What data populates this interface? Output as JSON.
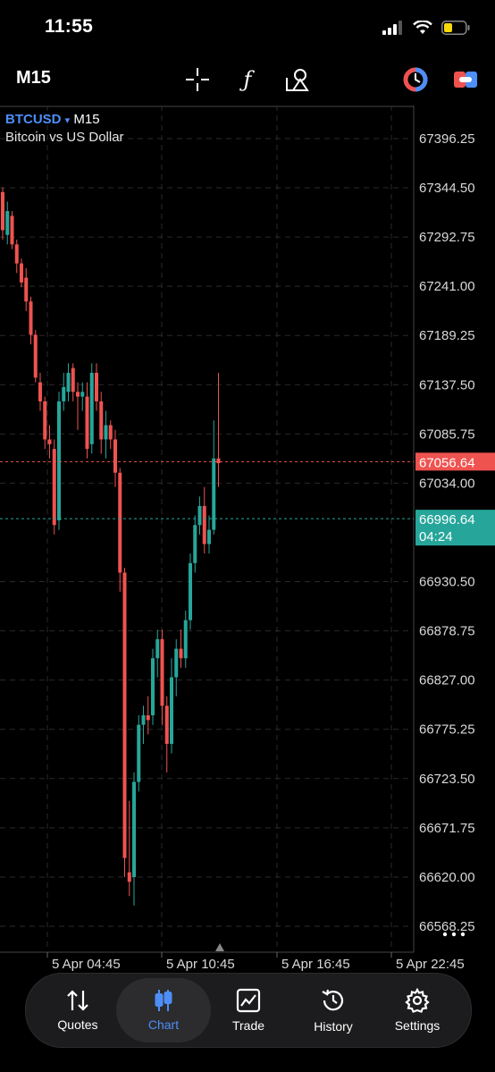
{
  "status": {
    "time": "11:55"
  },
  "toolbar": {
    "timeframe": "M15",
    "icons": [
      "crosshair-icon",
      "indicator-f-icon",
      "objects-icon",
      "one-click-trading-icon",
      "trade-toggle-icon"
    ]
  },
  "symbol": {
    "name": "BTCUSD",
    "dropdown": "▾",
    "timeframe": "M15",
    "description": "Bitcoin vs US Dollar"
  },
  "chart_data": {
    "type": "candlestick",
    "y_ticks": [
      "67396.25",
      "67344.50",
      "67292.75",
      "67241.00",
      "67189.25",
      "67137.50",
      "67085.75",
      "67034.00",
      "66930.50",
      "66878.75",
      "66827.00",
      "66775.25",
      "66723.50",
      "66671.75",
      "66620.00",
      "66568.25"
    ],
    "x_ticks": [
      "5 Apr 04:45",
      "5 Apr 10:45",
      "5 Apr 16:45",
      "5 Apr 22:45"
    ],
    "bid_price": "67056.64",
    "ask_price": "66996.64",
    "ask_timer": "04:24",
    "ylim": [
      66541,
      67431
    ],
    "colors": {
      "up": "#26a69a",
      "down": "#ef5350",
      "bid": "#ef5350",
      "ask": "#26a69a",
      "grid": "#2a2a2a"
    },
    "candles": [
      [
        67340,
        67345,
        67290,
        67300
      ],
      [
        67295,
        67330,
        67285,
        67320
      ],
      [
        67315,
        67320,
        67280,
        67285
      ],
      [
        67285,
        67290,
        67255,
        67265
      ],
      [
        67265,
        67270,
        67240,
        67245
      ],
      [
        67250,
        67260,
        67215,
        67225
      ],
      [
        67225,
        67230,
        67180,
        67190
      ],
      [
        67190,
        67195,
        67140,
        67145
      ],
      [
        67140,
        67150,
        67110,
        67120
      ],
      [
        67120,
        67125,
        67070,
        67080
      ],
      [
        67080,
        67095,
        67060,
        67075
      ],
      [
        67070,
        67080,
        66980,
        66990
      ],
      [
        66995,
        67130,
        66985,
        67120
      ],
      [
        67120,
        67150,
        67110,
        67135
      ],
      [
        67130,
        67160,
        67120,
        67150
      ],
      [
        67155,
        67160,
        67120,
        67130
      ],
      [
        67130,
        67140,
        67090,
        67125
      ],
      [
        67125,
        67140,
        67110,
        67130
      ],
      [
        67125,
        67140,
        67060,
        67070
      ],
      [
        67075,
        67160,
        67065,
        67150
      ],
      [
        67150,
        67160,
        67110,
        67120
      ],
      [
        67120,
        67130,
        67065,
        67080
      ],
      [
        67080,
        67110,
        67060,
        67095
      ],
      [
        67095,
        67100,
        67070,
        67080
      ],
      [
        67080,
        67090,
        67030,
        67045
      ],
      [
        67045,
        67050,
        66920,
        66940
      ],
      [
        66940,
        66945,
        66620,
        66640
      ],
      [
        66625,
        66700,
        66600,
        66615
      ],
      [
        66620,
        66730,
        66590,
        66720
      ],
      [
        66720,
        66790,
        66710,
        66780
      ],
      [
        66780,
        66800,
        66760,
        66790
      ],
      [
        66790,
        66810,
        66770,
        66785
      ],
      [
        66790,
        66860,
        66780,
        66850
      ],
      [
        66850,
        66880,
        66830,
        66870
      ],
      [
        66870,
        66880,
        66780,
        66800
      ],
      [
        66800,
        66810,
        66730,
        66760
      ],
      [
        66760,
        66850,
        66750,
        66830
      ],
      [
        66830,
        66870,
        66810,
        66860
      ],
      [
        66860,
        66880,
        66840,
        66850
      ],
      [
        66850,
        66900,
        66840,
        66890
      ],
      [
        66890,
        66960,
        66880,
        66950
      ],
      [
        66950,
        67000,
        66940,
        66990
      ],
      [
        66990,
        67020,
        66980,
        67010
      ],
      [
        67010,
        67030,
        66960,
        66970
      ],
      [
        66970,
        67000,
        66960,
        66985
      ],
      [
        66985,
        67100,
        66980,
        67060
      ],
      [
        67060,
        67150,
        67030,
        67055
      ]
    ]
  },
  "tabs": [
    {
      "label": "Quotes",
      "icon": "quotes-arrows-icon"
    },
    {
      "label": "Chart",
      "icon": "chart-candles-icon"
    },
    {
      "label": "Trade",
      "icon": "trade-chart-icon"
    },
    {
      "label": "History",
      "icon": "history-clock-icon"
    },
    {
      "label": "Settings",
      "icon": "settings-gear-icon"
    }
  ]
}
